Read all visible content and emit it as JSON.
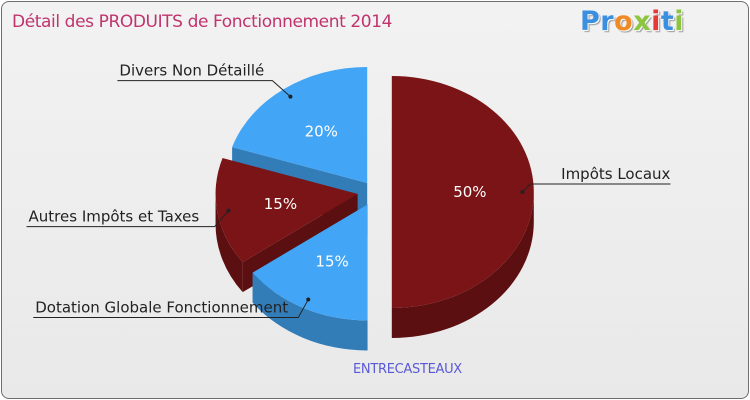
{
  "header": {
    "title": "Détail des PRODUITS de Fonctionnement 2014"
  },
  "logo": {
    "letters": [
      "P",
      "r",
      "o",
      "x",
      "i",
      "t",
      "i"
    ],
    "colors": [
      "#3b8fe0",
      "#3b8fe0",
      "#f08a24",
      "#8cc63f",
      "#e53935",
      "#3b8fe0",
      "#8cc63f"
    ]
  },
  "chart_data": {
    "type": "pie",
    "title": "Détail des PRODUITS de Fonctionnement 2014",
    "slices": [
      {
        "label": "Impôts Locaux",
        "value": 50,
        "value_label": "50%",
        "color": "#7b1416"
      },
      {
        "label": "Dotation Globale Fonctionnement",
        "value": 15,
        "value_label": "15%",
        "color": "#42a5f5"
      },
      {
        "label": "Autres Impôts et Taxes",
        "value": 15,
        "value_label": "15%",
        "color": "#7b1416"
      },
      {
        "label": "Divers Non Détaillé",
        "value": 20,
        "value_label": "20%",
        "color": "#42a5f5"
      }
    ]
  },
  "footer": {
    "commune": "ENTRECASTEAUX"
  }
}
